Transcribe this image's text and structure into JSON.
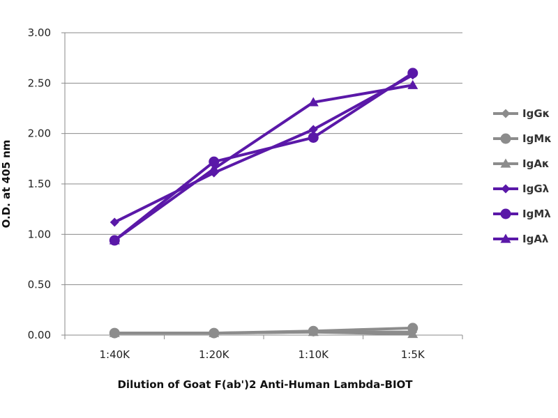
{
  "chart_data": {
    "type": "line",
    "title": "",
    "xlabel": "Dilution of Goat F(ab')2 Anti-Human Lambda-BIOT",
    "ylabel": "O.D. at 405 nm",
    "categories": [
      "1:40K",
      "1:20K",
      "1:10K",
      "1:5K"
    ],
    "ylim": [
      0,
      3
    ],
    "yticks": [
      "0.00",
      "0.50",
      "1.00",
      "1.50",
      "2.00",
      "2.50",
      "3.00"
    ],
    "grid": true,
    "legend_position": "right",
    "series": [
      {
        "name": "IgGκ",
        "values": [
          0.02,
          0.02,
          0.03,
          0.03
        ],
        "color": "#8c8c8c",
        "marker": "diamond"
      },
      {
        "name": "IgMκ",
        "values": [
          0.02,
          0.02,
          0.04,
          0.07
        ],
        "color": "#8c8c8c",
        "marker": "circle"
      },
      {
        "name": "IgAκ",
        "values": [
          0.02,
          0.02,
          0.03,
          0.01
        ],
        "color": "#8c8c8c",
        "marker": "triangle"
      },
      {
        "name": "IgGλ",
        "values": [
          1.12,
          1.61,
          2.04,
          2.58
        ],
        "color": "#5a18a8",
        "marker": "diamond"
      },
      {
        "name": "IgMλ",
        "values": [
          0.94,
          1.72,
          1.96,
          2.6
        ],
        "color": "#5a18a8",
        "marker": "circle"
      },
      {
        "name": "IgAλ",
        "values": [
          0.94,
          1.65,
          2.31,
          2.48
        ],
        "color": "#5a18a8",
        "marker": "triangle"
      }
    ]
  }
}
